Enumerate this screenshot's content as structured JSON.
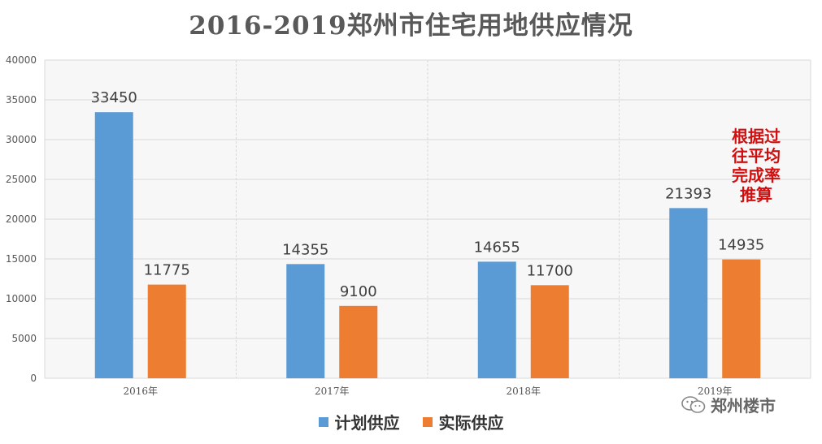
{
  "chart_data": {
    "type": "bar",
    "title": "2016-2019郑州市住宅用地供应情况",
    "categories": [
      "2016年",
      "2017年",
      "2018年",
      "2019年"
    ],
    "series": [
      {
        "name": "计划供应",
        "values": [
          33450,
          14355,
          14655,
          21393
        ],
        "color": "#5b9bd5"
      },
      {
        "name": "实际供应",
        "values": [
          11775,
          9100,
          11700,
          14935
        ],
        "color": "#ed7d31"
      }
    ],
    "ylim": [
      0,
      40000
    ],
    "yticks": [
      "0",
      "5000",
      "10000",
      "15000",
      "20000",
      "25000",
      "30000",
      "35000",
      "40000"
    ],
    "grid": true,
    "legend_position": "bottom",
    "annotation": {
      "lines": [
        "根据过",
        "往平均",
        "完成率",
        "推算"
      ],
      "color": "#d01010"
    }
  },
  "watermark": {
    "text": "郑州楼市",
    "icon": "wechat-icon"
  },
  "colors": {
    "grid": "#d9d9d9",
    "axis_text": "#555555",
    "title": "#595959",
    "plot_bg": "#f7f7f7"
  }
}
